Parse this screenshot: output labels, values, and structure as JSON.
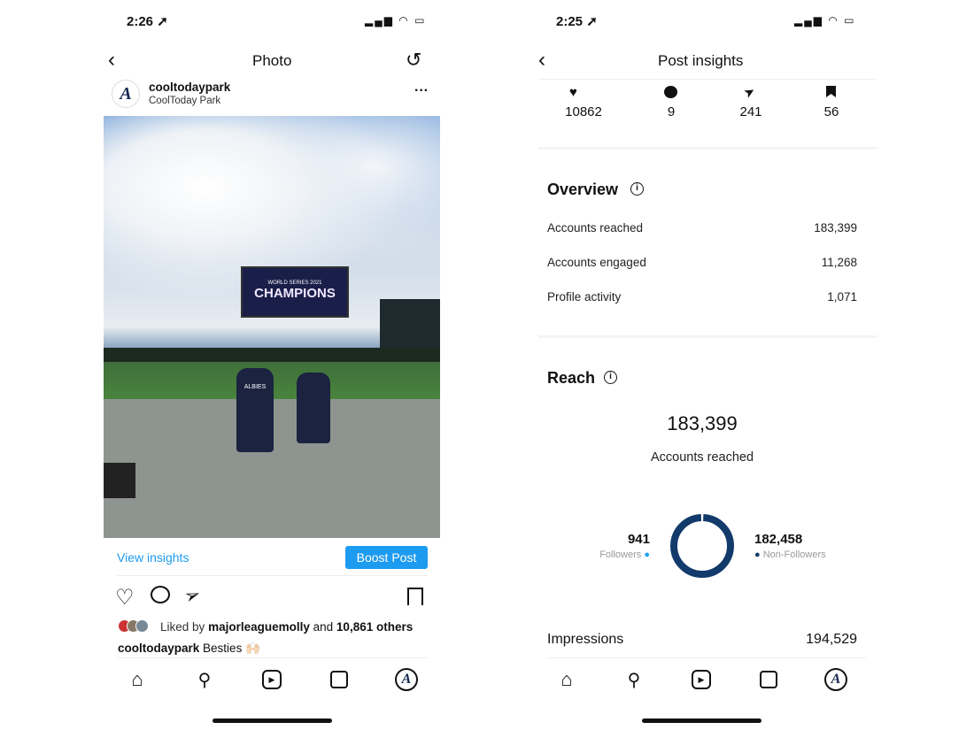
{
  "left": {
    "status_time": "2:26",
    "header_title": "Photo",
    "account": {
      "username": "cooltodaypark",
      "location": "CoolToday Park"
    },
    "photo": {
      "scoreboard_text": "CHAMPIONS",
      "scoreboard_sub": "WORLD SERIES 2021",
      "jersey": "ALBIES"
    },
    "view_insights": "View insights",
    "boost_post": "Boost Post",
    "likes": {
      "prefix": "Liked by",
      "user": "majorleaguemolly",
      "and": "and",
      "others": "10,861 others"
    },
    "caption": {
      "user": "cooltodaypark",
      "text": "Besties 🙌🏻"
    }
  },
  "right": {
    "status_time": "2:25",
    "header_title": "Post insights",
    "stats": [
      {
        "icon": "heart-icon",
        "value": "10862"
      },
      {
        "icon": "comment-icon",
        "value": "9"
      },
      {
        "icon": "share-icon",
        "value": "241"
      },
      {
        "icon": "bookmark-icon",
        "value": "56"
      }
    ],
    "overview": {
      "title": "Overview",
      "rows": [
        {
          "label": "Accounts reached",
          "value": "183,399"
        },
        {
          "label": "Accounts engaged",
          "value": "11,268"
        },
        {
          "label": "Profile activity",
          "value": "1,071"
        }
      ]
    },
    "reach": {
      "title": "Reach",
      "total": "183,399",
      "total_label": "Accounts reached",
      "followers": {
        "value": "941",
        "label": "Followers",
        "color": "#1da1f2"
      },
      "non_followers": {
        "value": "182,458",
        "label": "Non-Followers",
        "color": "#123a6b"
      }
    },
    "impressions": {
      "label": "Impressions",
      "value": "194,529"
    }
  }
}
